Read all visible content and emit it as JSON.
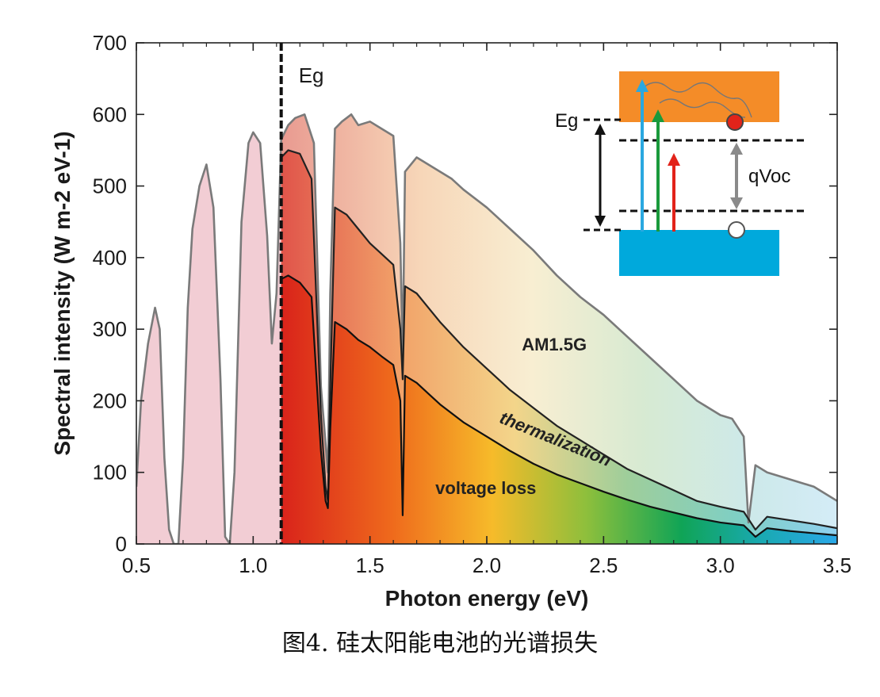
{
  "chart_data": {
    "type": "area",
    "title": "",
    "xlabel": "Photon energy (eV)",
    "ylabel": "Spectral intensity (W m-2 eV-1)",
    "xlim": [
      0.5,
      3.5
    ],
    "ylim": [
      0,
      700
    ],
    "xticks": [
      0.5,
      1.0,
      1.5,
      2.0,
      2.5,
      3.0,
      3.5
    ],
    "xtick_labels": [
      "0.5",
      "1.0",
      "1.5",
      "2.0",
      "2.5",
      "3.0",
      "3.5"
    ],
    "yticks": [
      0,
      100,
      200,
      300,
      400,
      500,
      600,
      700
    ],
    "ytick_labels": [
      "0",
      "100",
      "200",
      "300",
      "400",
      "500",
      "600",
      "700"
    ],
    "bandgap_eV": 1.12,
    "bandgap_label": "Eg",
    "series": [
      {
        "name": "AM1.5G",
        "x": [
          0.5,
          0.52,
          0.55,
          0.58,
          0.6,
          0.62,
          0.64,
          0.66,
          0.68,
          0.7,
          0.72,
          0.74,
          0.77,
          0.8,
          0.83,
          0.86,
          0.88,
          0.9,
          0.92,
          0.95,
          0.98,
          1.0,
          1.03,
          1.06,
          1.08,
          1.1,
          1.12,
          1.15,
          1.18,
          1.22,
          1.26,
          1.29,
          1.31,
          1.32,
          1.33,
          1.35,
          1.38,
          1.42,
          1.45,
          1.5,
          1.55,
          1.6,
          1.63,
          1.64,
          1.65,
          1.7,
          1.75,
          1.8,
          1.85,
          1.9,
          2.0,
          2.1,
          2.2,
          2.3,
          2.4,
          2.5,
          2.6,
          2.7,
          2.8,
          2.9,
          3.0,
          3.05,
          3.1,
          3.12,
          3.15,
          3.2,
          3.3,
          3.4,
          3.5
        ],
        "values": [
          80,
          200,
          280,
          330,
          300,
          120,
          20,
          0,
          0,
          120,
          330,
          440,
          500,
          530,
          470,
          230,
          10,
          0,
          100,
          450,
          560,
          575,
          560,
          430,
          280,
          350,
          565,
          585,
          595,
          600,
          560,
          220,
          140,
          100,
          350,
          580,
          590,
          600,
          585,
          590,
          580,
          570,
          420,
          260,
          520,
          540,
          530,
          520,
          510,
          495,
          470,
          440,
          410,
          375,
          345,
          320,
          290,
          260,
          230,
          200,
          180,
          175,
          150,
          30,
          110,
          100,
          90,
          80,
          60
        ],
        "color": "#7a7a7a"
      },
      {
        "name": "thermalization",
        "x": [
          1.12,
          1.15,
          1.2,
          1.25,
          1.29,
          1.31,
          1.32,
          1.33,
          1.35,
          1.4,
          1.45,
          1.5,
          1.55,
          1.6,
          1.63,
          1.64,
          1.65,
          1.7,
          1.75,
          1.8,
          1.9,
          2.0,
          2.1,
          2.2,
          2.3,
          2.4,
          2.5,
          2.6,
          2.7,
          2.8,
          2.9,
          3.0,
          3.1,
          3.15,
          3.2,
          3.3,
          3.4,
          3.5
        ],
        "values": [
          540,
          550,
          545,
          510,
          180,
          80,
          60,
          220,
          470,
          460,
          440,
          420,
          405,
          390,
          300,
          230,
          360,
          350,
          330,
          310,
          275,
          245,
          215,
          190,
          165,
          145,
          125,
          105,
          90,
          75,
          60,
          52,
          45,
          20,
          38,
          33,
          28,
          22
        ],
        "color": "#222222"
      },
      {
        "name": "voltage loss",
        "x": [
          1.12,
          1.15,
          1.2,
          1.25,
          1.29,
          1.31,
          1.32,
          1.33,
          1.35,
          1.4,
          1.45,
          1.5,
          1.55,
          1.6,
          1.63,
          1.64,
          1.65,
          1.7,
          1.75,
          1.8,
          1.9,
          2.0,
          2.1,
          2.2,
          2.3,
          2.4,
          2.5,
          2.6,
          2.7,
          2.8,
          2.9,
          3.0,
          3.1,
          3.15,
          3.2,
          3.3,
          3.4,
          3.5
        ],
        "values": [
          370,
          375,
          365,
          345,
          130,
          60,
          50,
          160,
          310,
          300,
          285,
          275,
          262,
          250,
          200,
          40,
          235,
          225,
          210,
          195,
          170,
          150,
          130,
          112,
          97,
          85,
          73,
          62,
          52,
          44,
          36,
          30,
          26,
          10,
          22,
          18,
          15,
          12
        ],
        "color": "#111111"
      }
    ],
    "annotations": [
      {
        "text": "AM1.5G",
        "x": 2.15,
        "y": 270
      },
      {
        "text": "thermalization",
        "x": 2.05,
        "y": 170
      },
      {
        "text": "voltage loss",
        "x": 1.78,
        "y": 70
      }
    ],
    "inset": {
      "type": "band-diagram",
      "eg_label": "Eg",
      "voc_label": "qVoc",
      "arrow_colors": [
        "#2aa8e0",
        "#1a9a3c",
        "#e2231a"
      ],
      "conduction_color": "#f48c28",
      "valence_color": "#00a9dc"
    }
  },
  "caption": "图4. 硅太阳能电池的光谱损失"
}
